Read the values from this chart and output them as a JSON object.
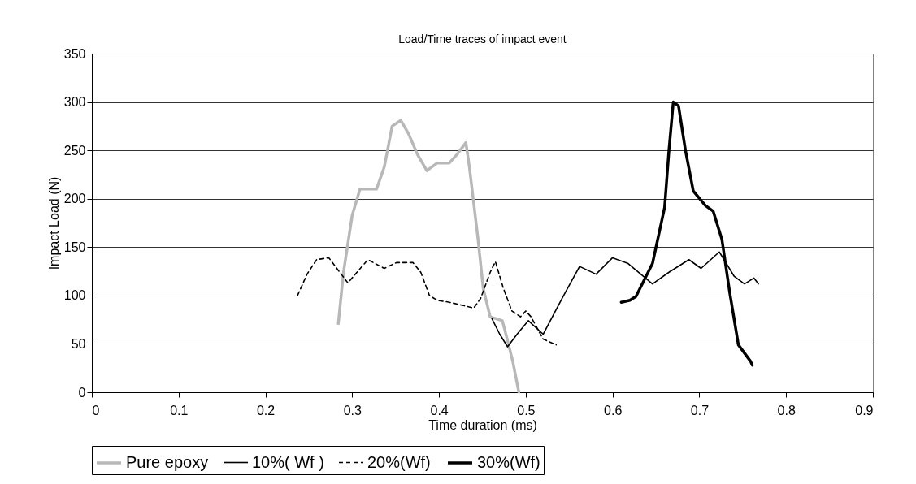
{
  "chart_data": {
    "type": "line",
    "title": "Load/Time traces of impact event",
    "xlabel": "Time duration (ms)",
    "ylabel": "Impact Load (N)",
    "xlim": [
      0,
      0.9
    ],
    "xticks": [
      0,
      0.1,
      0.2,
      0.3,
      0.4,
      0.5,
      0.6,
      0.7,
      0.8,
      0.9
    ],
    "ylim": [
      0,
      350
    ],
    "yticks": [
      0,
      50,
      100,
      150,
      200,
      250,
      300,
      350
    ],
    "grid": "y",
    "legend": "bottom",
    "marker": "none",
    "series": [
      {
        "name": "Pure epoxy",
        "color": "#b8b8b8",
        "line_style": "solid",
        "x": [
          0.284,
          0.29,
          0.3,
          0.309,
          0.328,
          0.337,
          0.346,
          0.356,
          0.365,
          0.375,
          0.386,
          0.398,
          0.412,
          0.421,
          0.431,
          0.435,
          0.445,
          0.451,
          0.459,
          0.473,
          0.478,
          0.485,
          0.492
        ],
        "values": [
          71,
          124,
          183,
          210,
          210,
          233,
          275,
          281,
          267,
          246,
          229,
          237,
          237,
          246,
          258,
          233,
          158,
          107,
          78,
          74,
          57,
          32,
          0
        ]
      },
      {
        "name": "10%( Wf )",
        "color": "#000000",
        "line_style": "solid",
        "x": [
          0.461,
          0.47,
          0.479,
          0.49,
          0.503,
          0.52,
          0.543,
          0.562,
          0.581,
          0.6,
          0.618,
          0.646,
          0.665,
          0.688,
          0.702,
          0.723,
          0.74,
          0.752,
          0.763,
          0.768
        ],
        "values": [
          76,
          60,
          47,
          60,
          74,
          60,
          99,
          130,
          122,
          139,
          133,
          112,
          124,
          137,
          128,
          145,
          120,
          112,
          118,
          112
        ]
      },
      {
        "name": "20%(Wf)",
        "color": "#000000",
        "line_style": "dashed",
        "x": [
          0.237,
          0.248,
          0.259,
          0.273,
          0.295,
          0.318,
          0.337,
          0.351,
          0.37,
          0.379,
          0.389,
          0.398,
          0.412,
          0.431,
          0.44,
          0.448,
          0.459,
          0.465,
          0.474,
          0.484,
          0.494,
          0.5,
          0.506,
          0.52,
          0.535
        ],
        "values": [
          100,
          122,
          137,
          139,
          113,
          137,
          128,
          134,
          134,
          124,
          100,
          95,
          93,
          89,
          87,
          97,
          124,
          135,
          108,
          84,
          78,
          84,
          78,
          55,
          49
        ]
      },
      {
        "name": "30%(Wf)",
        "color": "#000000",
        "line_style": "solid",
        "x": [
          0.61,
          0.62,
          0.627,
          0.646,
          0.66,
          0.665,
          0.67,
          0.676,
          0.684,
          0.693,
          0.707,
          0.716,
          0.726,
          0.735,
          0.745,
          0.759,
          0.761
        ],
        "values": [
          93,
          95,
          99,
          133,
          191,
          250,
          300,
          296,
          250,
          208,
          193,
          187,
          158,
          103,
          49,
          32,
          28
        ]
      }
    ]
  }
}
